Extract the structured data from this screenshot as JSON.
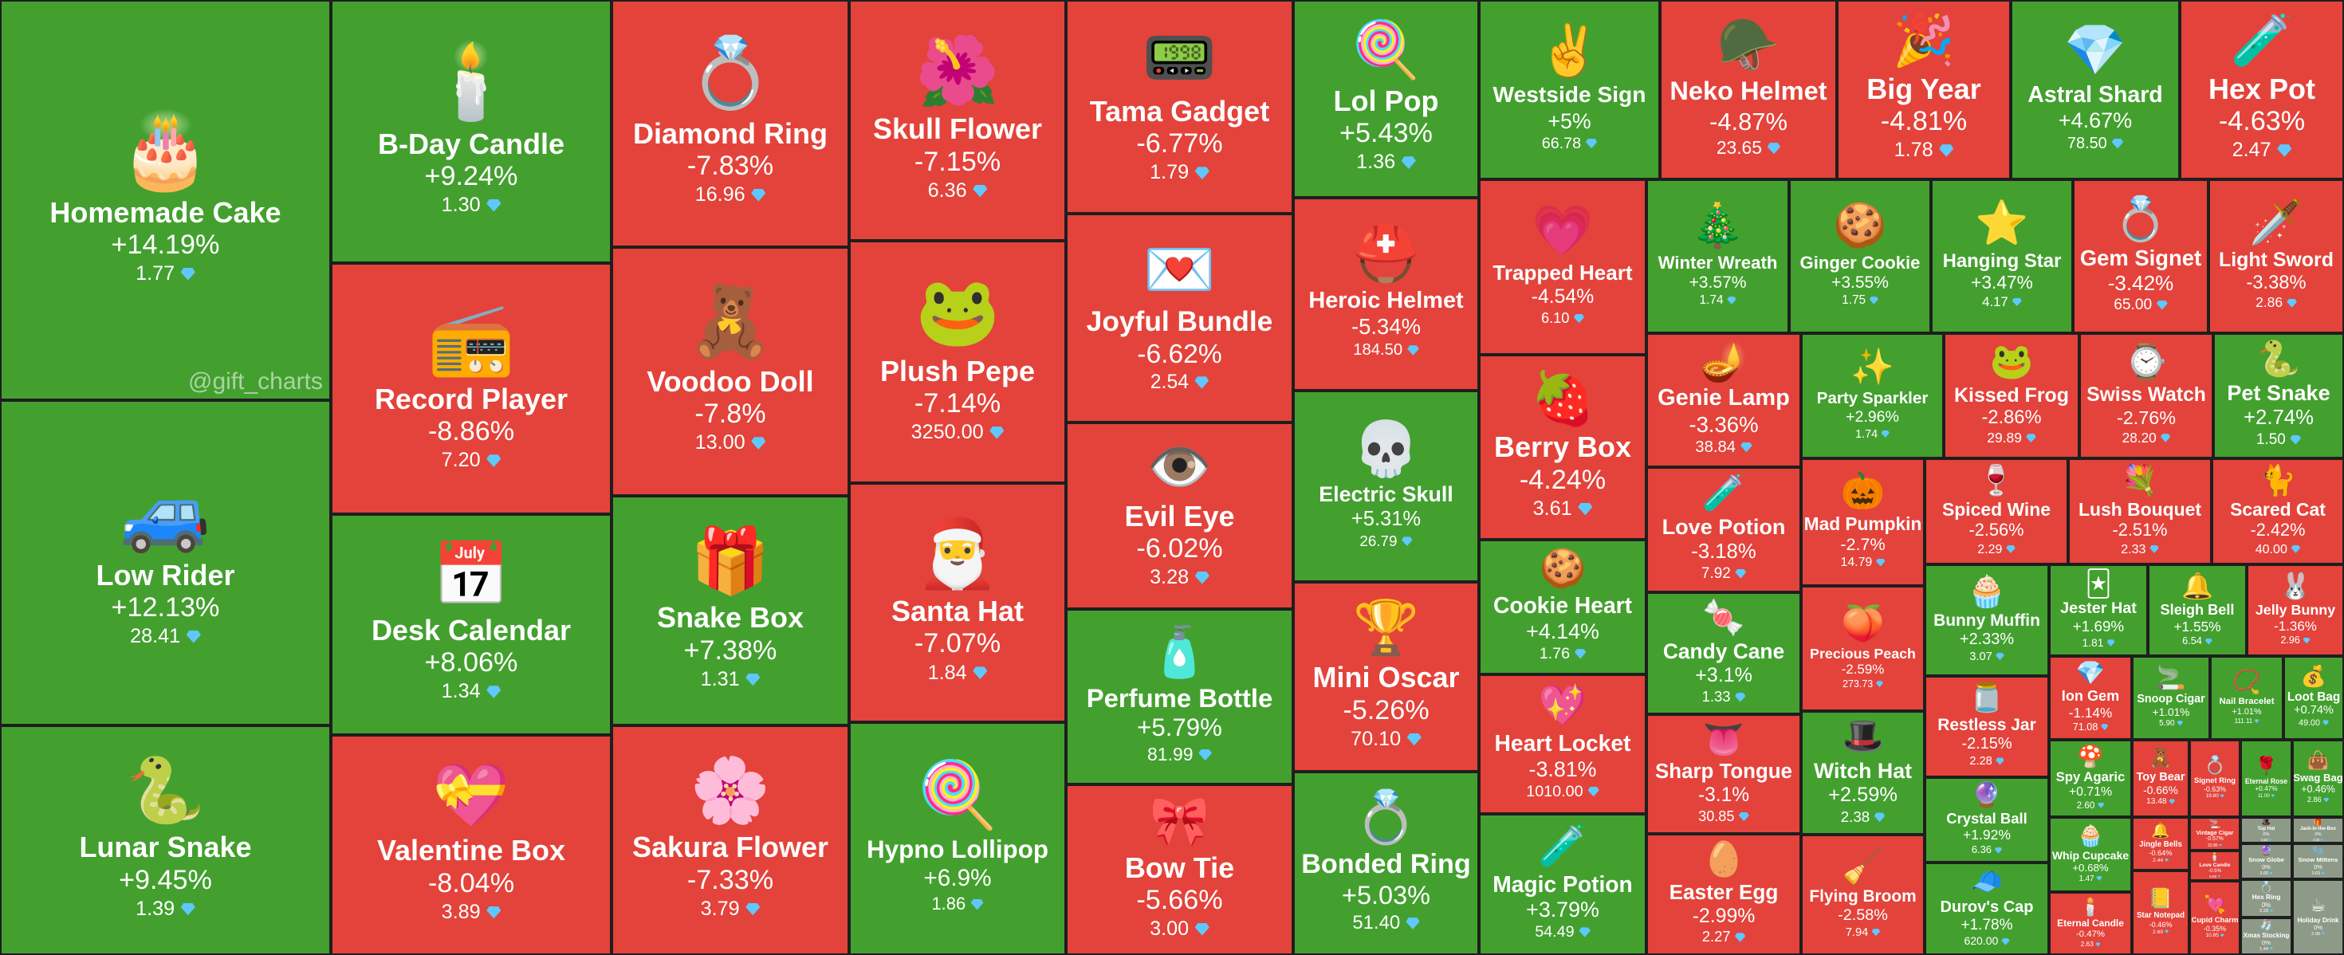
{
  "watermark": "@gift_charts",
  "colors": {
    "up": "#43a02f",
    "down": "#e3433b",
    "flat": "#8d9a88",
    "gem": "#5ec8ff"
  },
  "currency_icon": "diamond-icon",
  "chart_data": {
    "type": "heatmap",
    "subtype": "treemap",
    "unit": "diamond",
    "items": [
      {
        "name": "Homemade Cake",
        "change": "+14.19%",
        "price": "1.77",
        "icon": "🎂"
      },
      {
        "name": "Low Rider",
        "change": "+12.13%",
        "price": "28.41",
        "icon": "🚙"
      },
      {
        "name": "Lunar Snake",
        "change": "+9.45%",
        "price": "1.39",
        "icon": "🐍"
      },
      {
        "name": "B-Day Candle",
        "change": "+9.24%",
        "price": "1.30",
        "icon": "🕯️"
      },
      {
        "name": "Record Player",
        "change": "-8.86%",
        "price": "7.20",
        "icon": "📻"
      },
      {
        "name": "Desk Calendar",
        "change": "+8.06%",
        "price": "1.34",
        "icon": "📅"
      },
      {
        "name": "Valentine Box",
        "change": "-8.04%",
        "price": "3.89",
        "icon": "💝"
      },
      {
        "name": "Diamond Ring",
        "change": "-7.83%",
        "price": "16.96",
        "icon": "💍"
      },
      {
        "name": "Voodoo Doll",
        "change": "-7.8%",
        "price": "13.00",
        "icon": "🧸"
      },
      {
        "name": "Snake Box",
        "change": "+7.38%",
        "price": "1.31",
        "icon": "🎁"
      },
      {
        "name": "Sakura Flower",
        "change": "-7.33%",
        "price": "3.79",
        "icon": "🌸"
      },
      {
        "name": "Skull Flower",
        "change": "-7.15%",
        "price": "6.36",
        "icon": "🌺"
      },
      {
        "name": "Plush Pepe",
        "change": "-7.14%",
        "price": "3250.00",
        "icon": "🐸"
      },
      {
        "name": "Santa Hat",
        "change": "-7.07%",
        "price": "1.84",
        "icon": "🎅"
      },
      {
        "name": "Hypno Lollipop",
        "change": "+6.9%",
        "price": "1.86",
        "icon": "🍭"
      },
      {
        "name": "Tama Gadget",
        "change": "-6.77%",
        "price": "1.79",
        "icon": "📟"
      },
      {
        "name": "Joyful Bundle",
        "change": "-6.62%",
        "price": "2.54",
        "icon": "💌"
      },
      {
        "name": "Evil Eye",
        "change": "-6.02%",
        "price": "3.28",
        "icon": "👁️"
      },
      {
        "name": "Perfume Bottle",
        "change": "+5.79%",
        "price": "81.99",
        "icon": "🧴"
      },
      {
        "name": "Bow Tie",
        "change": "-5.66%",
        "price": "3.00",
        "icon": "🎀"
      },
      {
        "name": "Lol Pop",
        "change": "+5.43%",
        "price": "1.36",
        "icon": "🍭"
      },
      {
        "name": "Heroic Helmet",
        "change": "-5.34%",
        "price": "184.50",
        "icon": "⛑️"
      },
      {
        "name": "Electric Skull",
        "change": "+5.31%",
        "price": "26.79",
        "icon": "💀"
      },
      {
        "name": "Mini Oscar",
        "change": "-5.26%",
        "price": "70.10",
        "icon": "🏆"
      },
      {
        "name": "Bonded Ring",
        "change": "+5.03%",
        "price": "51.40",
        "icon": "💍"
      },
      {
        "name": "Westside Sign",
        "change": "+5%",
        "price": "66.78",
        "icon": "✌️"
      },
      {
        "name": "Neko Helmet",
        "change": "-4.87%",
        "price": "23.65",
        "icon": "🪖"
      },
      {
        "name": "Big Year",
        "change": "-4.81%",
        "price": "1.78",
        "icon": "🎉"
      },
      {
        "name": "Astral Shard",
        "change": "+4.67%",
        "price": "78.50",
        "icon": "💎"
      },
      {
        "name": "Hex Pot",
        "change": "-4.63%",
        "price": "2.47",
        "icon": "🧪"
      },
      {
        "name": "Trapped Heart",
        "change": "-4.54%",
        "price": "6.10",
        "icon": "💗"
      },
      {
        "name": "Berry Box",
        "change": "-4.24%",
        "price": "3.61",
        "icon": "🍓"
      },
      {
        "name": "Cookie Heart",
        "change": "+4.14%",
        "price": "1.76",
        "icon": "🍪"
      },
      {
        "name": "Heart Locket",
        "change": "-3.81%",
        "price": "1010.00",
        "icon": "💖"
      },
      {
        "name": "Magic Potion",
        "change": "+3.79%",
        "price": "54.49",
        "icon": "🧪"
      },
      {
        "name": "Winter Wreath",
        "change": "+3.57%",
        "price": "1.74",
        "icon": "🎄"
      },
      {
        "name": "Ginger Cookie",
        "change": "+3.55%",
        "price": "1.75",
        "icon": "🍪"
      },
      {
        "name": "Hanging Star",
        "change": "+3.47%",
        "price": "4.17",
        "icon": "⭐"
      },
      {
        "name": "Gem Signet",
        "change": "-3.42%",
        "price": "65.00",
        "icon": "💍"
      },
      {
        "name": "Light Sword",
        "change": "-3.38%",
        "price": "2.86",
        "icon": "🗡️"
      },
      {
        "name": "Genie Lamp",
        "change": "-3.36%",
        "price": "38.84",
        "icon": "🪔"
      },
      {
        "name": "Party Sparkler",
        "change": "+2.96%",
        "price": "1.74",
        "icon": "✨"
      },
      {
        "name": "Kissed Frog",
        "change": "-2.86%",
        "price": "29.89",
        "icon": "🐸"
      },
      {
        "name": "Swiss Watch",
        "change": "-2.76%",
        "price": "28.20",
        "icon": "⌚"
      },
      {
        "name": "Pet Snake",
        "change": "+2.74%",
        "price": "1.50",
        "icon": "🐍"
      },
      {
        "name": "Love Potion",
        "change": "-3.18%",
        "price": "7.92",
        "icon": "🧪"
      },
      {
        "name": "Candy Cane",
        "change": "+3.1%",
        "price": "1.33",
        "icon": "🍬"
      },
      {
        "name": "Sharp Tongue",
        "change": "-3.1%",
        "price": "30.85",
        "icon": "👅"
      },
      {
        "name": "Easter Egg",
        "change": "-2.99%",
        "price": "2.27",
        "icon": "🥚"
      },
      {
        "name": "Mad Pumpkin",
        "change": "-2.7%",
        "price": "14.79",
        "icon": "🎃"
      },
      {
        "name": "Precious Peach",
        "change": "-2.59%",
        "price": "273.73",
        "icon": "🍑"
      },
      {
        "name": "Witch Hat",
        "change": "+2.59%",
        "price": "2.38",
        "icon": "🎩"
      },
      {
        "name": "Flying Broom",
        "change": "-2.58%",
        "price": "7.94",
        "icon": "🧹"
      },
      {
        "name": "Spiced Wine",
        "change": "-2.56%",
        "price": "2.29",
        "icon": "🍷"
      },
      {
        "name": "Lush Bouquet",
        "change": "-2.51%",
        "price": "2.33",
        "icon": "💐"
      },
      {
        "name": "Scared Cat",
        "change": "-2.42%",
        "price": "40.00",
        "icon": "🐈"
      },
      {
        "name": "Bunny Muffin",
        "change": "+2.33%",
        "price": "3.07",
        "icon": "🧁"
      },
      {
        "name": "Restless Jar",
        "change": "-2.15%",
        "price": "2.28",
        "icon": "🫙"
      },
      {
        "name": "Crystal Ball",
        "change": "+1.92%",
        "price": "6.36",
        "icon": "🔮"
      },
      {
        "name": "Durov's Cap",
        "change": "+1.78%",
        "price": "620.00",
        "icon": "🧢"
      },
      {
        "name": "Jester Hat",
        "change": "+1.69%",
        "price": "1.81",
        "icon": "🃏"
      },
      {
        "name": "Sleigh Bell",
        "change": "+1.55%",
        "price": "6.54",
        "icon": "🔔"
      },
      {
        "name": "Jelly Bunny",
        "change": "-1.36%",
        "price": "2.96",
        "icon": "🐰"
      },
      {
        "name": "Ion Gem",
        "change": "-1.14%",
        "price": "71.08",
        "icon": "💎"
      },
      {
        "name": "Snoop Cigar",
        "change": "+1.01%",
        "price": "5.90",
        "icon": "🚬"
      },
      {
        "name": "Nail Bracelet",
        "change": "+1.01%",
        "price": "111.11",
        "icon": "📿"
      },
      {
        "name": "Loot Bag",
        "change": "+0.74%",
        "price": "49.00",
        "icon": "💰"
      },
      {
        "name": "Spy Agaric",
        "change": "+0.71%",
        "price": "2.60",
        "icon": "🍄"
      },
      {
        "name": "Toy Bear",
        "change": "-0.66%",
        "price": "13.48",
        "icon": "🧸"
      },
      {
        "name": "Signet Ring",
        "change": "-0.63%",
        "price": "19.80",
        "icon": "💍"
      },
      {
        "name": "Eternal Rose",
        "change": "+0.47%",
        "price": "11.00",
        "icon": "🌹"
      },
      {
        "name": "Swag Bag",
        "change": "+0.46%",
        "price": "2.86",
        "icon": "👜"
      },
      {
        "name": "Whip Cupcake",
        "change": "+0.68%",
        "price": "1.47",
        "icon": "🧁"
      },
      {
        "name": "Jingle Bells",
        "change": "-0.64%",
        "price": "2.44",
        "icon": "🔔"
      },
      {
        "name": "Vintage Cigar",
        "change": "-0.57%",
        "price": "22.85",
        "icon": "🚬"
      },
      {
        "name": "Love Candle",
        "change": "-0.5%",
        "price": "6.60",
        "icon": "🕯️"
      },
      {
        "name": "Eternal Candle",
        "change": "-0.47%",
        "price": "2.63",
        "icon": "🕯️"
      },
      {
        "name": "Star Notepad",
        "change": "-0.46%",
        "price": "2.60",
        "icon": "📒"
      },
      {
        "name": "Cupid Charm",
        "change": "-0.35%",
        "price": "10.85",
        "icon": "💘"
      },
      {
        "name": "Top Hat",
        "change": "0%",
        "price": "8.63",
        "icon": "🎩"
      },
      {
        "name": "Jack-in-the-Box",
        "change": "0%",
        "price": "2.00",
        "icon": "🎁"
      },
      {
        "name": "Snow Globe",
        "change": "0%",
        "price": "3.60",
        "icon": "🔮"
      },
      {
        "name": "Snow Mittens",
        "change": "0%",
        "price": "3.63",
        "icon": "🧤"
      },
      {
        "name": "Hex Ring",
        "change": "0%",
        "price": "2.28",
        "icon": "💍"
      },
      {
        "name": "Holiday Drink",
        "change": "0%",
        "price": "2.00",
        "icon": "☕"
      },
      {
        "name": "Xmas Stocking",
        "change": "0%",
        "price": "1.44",
        "icon": "🧦"
      }
    ]
  }
}
